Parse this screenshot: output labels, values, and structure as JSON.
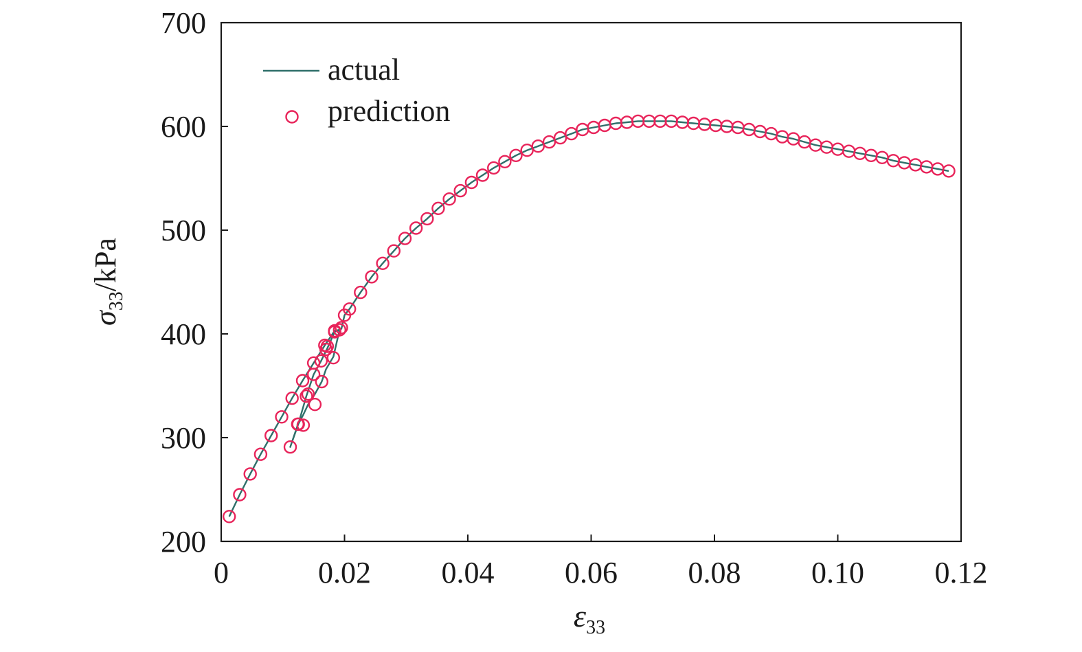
{
  "chart_data": {
    "type": "line",
    "title": "",
    "xlabel": {
      "symbol": "ε",
      "subscript": "33",
      "suffix": ""
    },
    "ylabel": {
      "symbol": "σ",
      "subscript": "33",
      "suffix": "/kPa"
    },
    "xlim": [
      0,
      0.12
    ],
    "ylim": [
      200,
      700
    ],
    "xticks": [
      0,
      0.02,
      0.04,
      0.06,
      0.08,
      0.1,
      0.12
    ],
    "xtick_labels": [
      "0",
      "0.02",
      "0.04",
      "0.06",
      "0.08",
      "0.10",
      "0.12"
    ],
    "yticks": [
      200,
      300,
      400,
      500,
      600,
      700
    ],
    "ytick_labels": [
      "200",
      "300",
      "400",
      "500",
      "600",
      "700"
    ],
    "grid": false,
    "legend_position": "top-left",
    "colors": {
      "actual": "#2f6f6a",
      "prediction": "#e8245a",
      "axis": "#1a1a1a"
    },
    "series": [
      {
        "name": "actual",
        "style": "line",
        "x": [
          0.0013,
          0.003,
          0.0047,
          0.0064,
          0.0081,
          0.0098,
          0.0115,
          0.0132,
          0.015,
          0.0168,
          0.0184,
          0.0192,
          0.0182,
          0.017,
          0.0163,
          0.0152,
          0.0141,
          0.0133,
          0.0124,
          0.0112,
          0.0125,
          0.0138,
          0.015,
          0.0162,
          0.0172,
          0.0184,
          0.0195,
          0.02,
          0.0208,
          0.0226,
          0.0244,
          0.0262,
          0.028,
          0.0298,
          0.0316,
          0.0334,
          0.0352,
          0.037,
          0.0388,
          0.0406,
          0.0424,
          0.0442,
          0.046,
          0.0478,
          0.0496,
          0.0514,
          0.0532,
          0.055,
          0.0568,
          0.0586,
          0.0604,
          0.0622,
          0.064,
          0.0658,
          0.0676,
          0.0694,
          0.0712,
          0.073,
          0.0748,
          0.0766,
          0.0784,
          0.0802,
          0.082,
          0.0838,
          0.0856,
          0.0874,
          0.0892,
          0.091,
          0.0928,
          0.0946,
          0.0964,
          0.0982,
          0.1,
          0.1018,
          0.1036,
          0.1054,
          0.1072,
          0.109,
          0.1108,
          0.1126,
          0.1144,
          0.1162,
          0.118
        ],
        "y": [
          224,
          245,
          265,
          284,
          302,
          320,
          338,
          355,
          372,
          389,
          403,
          404,
          378,
          366,
          354,
          342,
          332,
          322,
          312,
          291,
          313,
          340,
          361,
          374,
          386,
          402,
          405,
          418,
          424,
          440,
          455,
          468,
          480,
          492,
          502,
          511,
          521,
          530,
          538,
          546,
          553,
          560,
          566,
          572,
          577,
          581,
          585,
          589,
          593,
          597,
          599,
          601,
          603,
          604,
          605,
          605,
          605,
          605,
          604,
          603,
          602,
          601,
          600,
          599,
          597,
          595,
          593,
          590,
          588,
          585,
          582,
          580,
          578,
          576,
          574,
          572,
          570,
          567,
          565,
          563,
          561,
          559,
          557
        ]
      },
      {
        "name": "prediction",
        "style": "markers",
        "x": [
          0.0013,
          0.003,
          0.0047,
          0.0064,
          0.0081,
          0.0098,
          0.0115,
          0.0132,
          0.015,
          0.0168,
          0.0184,
          0.0192,
          0.0182,
          0.017,
          0.0163,
          0.0152,
          0.0141,
          0.0133,
          0.0124,
          0.0112,
          0.0125,
          0.0138,
          0.015,
          0.0162,
          0.0172,
          0.0184,
          0.0195,
          0.02,
          0.0208,
          0.0226,
          0.0244,
          0.0262,
          0.028,
          0.0298,
          0.0316,
          0.0334,
          0.0352,
          0.037,
          0.0388,
          0.0406,
          0.0424,
          0.0442,
          0.046,
          0.0478,
          0.0496,
          0.0514,
          0.0532,
          0.055,
          0.0568,
          0.0586,
          0.0604,
          0.0622,
          0.064,
          0.0658,
          0.0676,
          0.0694,
          0.0712,
          0.073,
          0.0748,
          0.0766,
          0.0784,
          0.0802,
          0.082,
          0.0838,
          0.0856,
          0.0874,
          0.0892,
          0.091,
          0.0928,
          0.0946,
          0.0964,
          0.0982,
          0.1,
          0.1018,
          0.1036,
          0.1054,
          0.1072,
          0.109,
          0.1108,
          0.1126,
          0.1144,
          0.1162,
          0.118
        ],
        "y": [
          224,
          245,
          265,
          284,
          302,
          320,
          338,
          355,
          372,
          389,
          403,
          404,
          377,
          385,
          354,
          332,
          342,
          312,
          313,
          291,
          313,
          340,
          361,
          374,
          388,
          402,
          406,
          418,
          424,
          440,
          455,
          468,
          480,
          492,
          502,
          511,
          521,
          530,
          538,
          546,
          553,
          560,
          566,
          572,
          577,
          581,
          585,
          589,
          593,
          597,
          599,
          601,
          603,
          604,
          605,
          605,
          605,
          605,
          604,
          603,
          602,
          601,
          600,
          599,
          597,
          595,
          593,
          590,
          588,
          585,
          582,
          580,
          578,
          576,
          574,
          572,
          570,
          567,
          565,
          563,
          561,
          559,
          557
        ]
      }
    ]
  }
}
